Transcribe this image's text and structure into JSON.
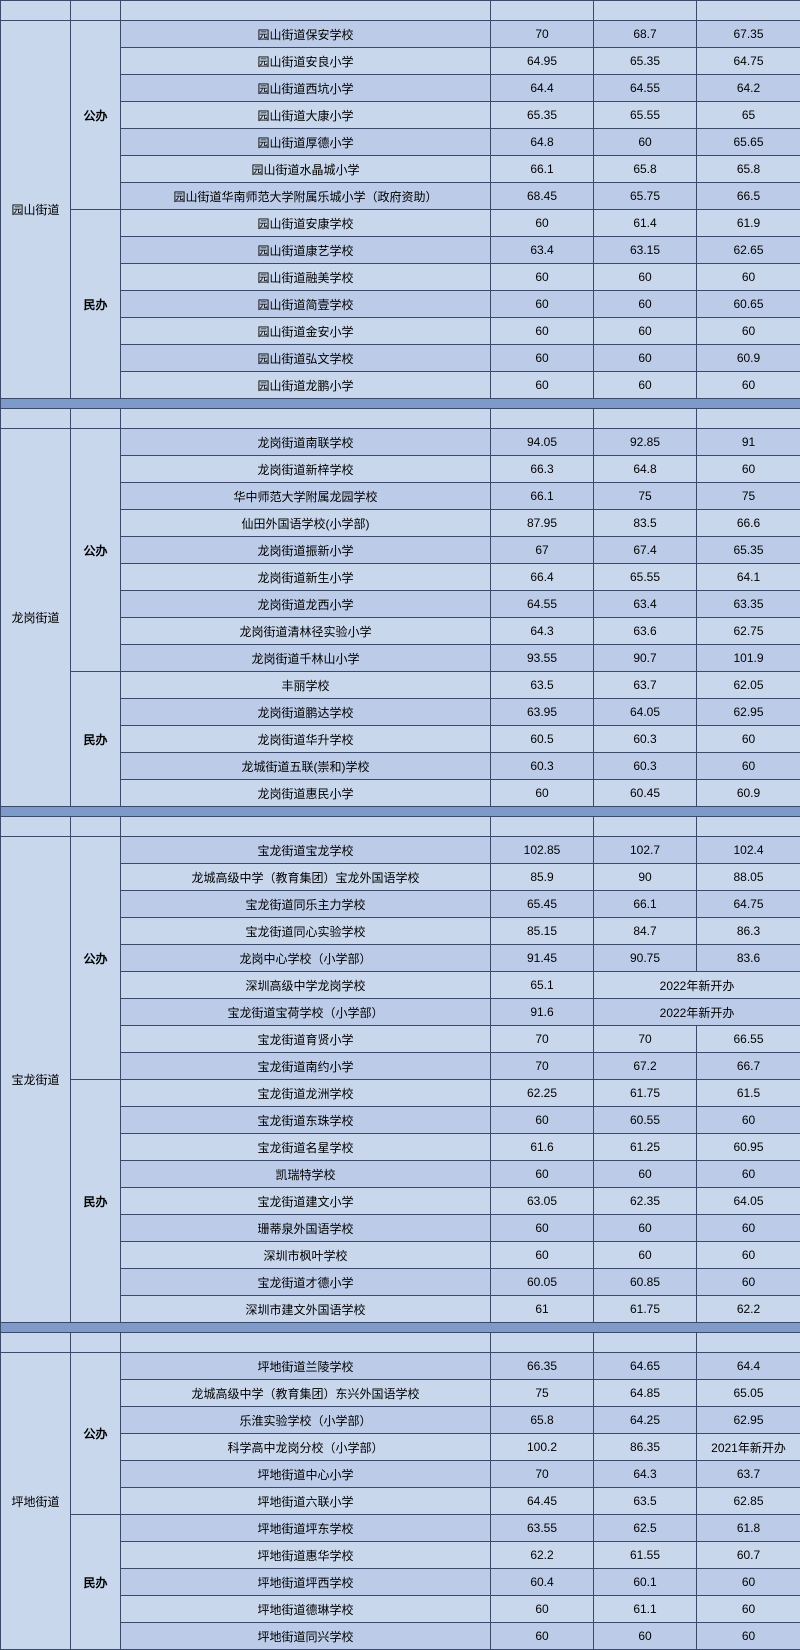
{
  "colors": {
    "header_blue": "#7d9ac9",
    "row_light": "#c9d7ed",
    "row_band": "#bccce8",
    "text": "#000000"
  },
  "fontsize": 12,
  "districts": [
    {
      "name": "园山街道",
      "groups": [
        {
          "type": "公办",
          "rows": [
            {
              "school": "园山街道保安学校",
              "c1": "70",
              "c2": "68.7",
              "c3": "67.35"
            },
            {
              "school": "园山街道安良小学",
              "c1": "64.95",
              "c2": "65.35",
              "c3": "64.75"
            },
            {
              "school": "园山街道西坑小学",
              "c1": "64.4",
              "c2": "64.55",
              "c3": "64.2"
            },
            {
              "school": "园山街道大康小学",
              "c1": "65.35",
              "c2": "65.55",
              "c3": "65"
            },
            {
              "school": "园山街道厚德小学",
              "c1": "64.8",
              "c2": "60",
              "c3": "65.65"
            },
            {
              "school": "园山街道水晶城小学",
              "c1": "66.1",
              "c2": "65.8",
              "c3": "65.8"
            },
            {
              "school": "园山街道华南师范大学附属乐城小学（政府资助）",
              "c1": "68.45",
              "c2": "65.75",
              "c3": "66.5"
            }
          ]
        },
        {
          "type": "民办",
          "rows": [
            {
              "school": "园山街道安康学校",
              "c1": "60",
              "c2": "61.4",
              "c3": "61.9"
            },
            {
              "school": "园山街道康艺学校",
              "c1": "63.4",
              "c2": "63.15",
              "c3": "62.65"
            },
            {
              "school": "园山街道融美学校",
              "c1": "60",
              "c2": "60",
              "c3": "60"
            },
            {
              "school": "园山街道简壹学校",
              "c1": "60",
              "c2": "60",
              "c3": "60.65"
            },
            {
              "school": "园山街道金安小学",
              "c1": "60",
              "c2": "60",
              "c3": "60"
            },
            {
              "school": "园山街道弘文学校",
              "c1": "60",
              "c2": "60",
              "c3": "60.9"
            },
            {
              "school": "园山街道龙鹏小学",
              "c1": "60",
              "c2": "60",
              "c3": "60"
            }
          ]
        }
      ]
    },
    {
      "name": "龙岗街道",
      "groups": [
        {
          "type": "公办",
          "rows": [
            {
              "school": "龙岗街道南联学校",
              "c1": "94.05",
              "c2": "92.85",
              "c3": "91"
            },
            {
              "school": "龙岗街道新梓学校",
              "c1": "66.3",
              "c2": "64.8",
              "c3": "60"
            },
            {
              "school": "华中师范大学附属龙园学校",
              "c1": "66.1",
              "c2": "75",
              "c3": "75"
            },
            {
              "school": "仙田外国语学校(小学部)",
              "c1": "87.95",
              "c2": "83.5",
              "c3": "66.6"
            },
            {
              "school": "龙岗街道振新小学",
              "c1": "67",
              "c2": "67.4",
              "c3": "65.35"
            },
            {
              "school": "龙岗街道新生小学",
              "c1": "66.4",
              "c2": "65.55",
              "c3": "64.1"
            },
            {
              "school": "龙岗街道龙西小学",
              "c1": "64.55",
              "c2": "63.4",
              "c3": "63.35"
            },
            {
              "school": "龙岗街道清林径实验小学",
              "c1": "64.3",
              "c2": "63.6",
              "c3": "62.75"
            },
            {
              "school": "龙岗街道千林山小学",
              "c1": "93.55",
              "c2": "90.7",
              "c3": "101.9"
            }
          ]
        },
        {
          "type": "民办",
          "rows": [
            {
              "school": "丰丽学校",
              "c1": "63.5",
              "c2": "63.7",
              "c3": "62.05"
            },
            {
              "school": "龙岗街道鹏达学校",
              "c1": "63.95",
              "c2": "64.05",
              "c3": "62.95"
            },
            {
              "school": "龙岗街道华升学校",
              "c1": "60.5",
              "c2": "60.3",
              "c3": "60"
            },
            {
              "school": "龙城街道五联(崇和)学校",
              "c1": "60.3",
              "c2": "60.3",
              "c3": "60"
            },
            {
              "school": "龙岗街道惠民小学",
              "c1": "60",
              "c2": "60.45",
              "c3": "60.9"
            }
          ]
        }
      ]
    },
    {
      "name": "宝龙街道",
      "groups": [
        {
          "type": "公办",
          "rows": [
            {
              "school": "宝龙街道宝龙学校",
              "c1": "102.85",
              "c2": "102.7",
              "c3": "102.4"
            },
            {
              "school": "龙城高级中学（教育集团）宝龙外国语学校",
              "c1": "85.9",
              "c2": "90",
              "c3": "88.05"
            },
            {
              "school": "宝龙街道同乐主力学校",
              "c1": "65.45",
              "c2": "66.1",
              "c3": "64.75"
            },
            {
              "school": "宝龙街道同心实验学校",
              "c1": "85.15",
              "c2": "84.7",
              "c3": "86.3"
            },
            {
              "school": "龙岗中心学校（小学部）",
              "c1": "91.45",
              "c2": "90.75",
              "c3": "83.6"
            },
            {
              "school": "深圳高级中学龙岗学校",
              "c1": "65.1",
              "merged": "2022年新开办"
            },
            {
              "school": "宝龙街道宝荷学校（小学部）",
              "c1": "91.6",
              "merged": "2022年新开办"
            },
            {
              "school": "宝龙街道育贤小学",
              "c1": "70",
              "c2": "70",
              "c3": "66.55"
            },
            {
              "school": "宝龙街道南约小学",
              "c1": "70",
              "c2": "67.2",
              "c3": "66.7"
            }
          ]
        },
        {
          "type": "民办",
          "rows": [
            {
              "school": "宝龙街道龙洲学校",
              "c1": "62.25",
              "c2": "61.75",
              "c3": "61.5"
            },
            {
              "school": "宝龙街道东珠学校",
              "c1": "60",
              "c2": "60.55",
              "c3": "60"
            },
            {
              "school": "宝龙街道名星学校",
              "c1": "61.6",
              "c2": "61.25",
              "c3": "60.95"
            },
            {
              "school": "凯瑞特学校",
              "c1": "60",
              "c2": "60",
              "c3": "60"
            },
            {
              "school": "宝龙街道建文小学",
              "c1": "63.05",
              "c2": "62.35",
              "c3": "64.05"
            },
            {
              "school": "珊蒂泉外国语学校",
              "c1": "60",
              "c2": "60",
              "c3": "60"
            },
            {
              "school": "深圳市枫叶学校",
              "c1": "60",
              "c2": "60",
              "c3": "60"
            },
            {
              "school": "宝龙街道才德小学",
              "c1": "60.05",
              "c2": "60.85",
              "c3": "60"
            },
            {
              "school": "深圳市建文外国语学校",
              "c1": "61",
              "c2": "61.75",
              "c3": "62.2"
            }
          ]
        }
      ]
    },
    {
      "name": "坪地街道",
      "groups": [
        {
          "type": "公办",
          "rows": [
            {
              "school": "坪地街道兰陵学校",
              "c1": "66.35",
              "c2": "64.65",
              "c3": "64.4"
            },
            {
              "school": "龙城高级中学（教育集团）东兴外国语学校",
              "c1": "75",
              "c2": "64.85",
              "c3": "65.05"
            },
            {
              "school": "乐淮实验学校（小学部）",
              "c1": "65.8",
              "c2": "64.25",
              "c3": "62.95"
            },
            {
              "school": "科学高中龙岗分校（小学部）",
              "c1": "100.2",
              "c2": "86.35",
              "c3": "2021年新开办"
            },
            {
              "school": "坪地街道中心小学",
              "c1": "70",
              "c2": "64.3",
              "c3": "63.7"
            },
            {
              "school": "坪地街道六联小学",
              "c1": "64.45",
              "c2": "63.5",
              "c3": "62.85"
            }
          ]
        },
        {
          "type": "民办",
          "rows": [
            {
              "school": "坪地街道坪东学校",
              "c1": "63.55",
              "c2": "62.5",
              "c3": "61.8"
            },
            {
              "school": "坪地街道惠华学校",
              "c1": "62.2",
              "c2": "61.55",
              "c3": "60.7"
            },
            {
              "school": "坪地街道坪西学校",
              "c1": "60.4",
              "c2": "60.1",
              "c3": "60"
            },
            {
              "school": "坪地街道德琳学校",
              "c1": "60",
              "c2": "61.1",
              "c3": "60"
            },
            {
              "school": "坪地街道同兴学校",
              "c1": "60",
              "c2": "60",
              "c3": "60"
            }
          ]
        }
      ]
    }
  ]
}
